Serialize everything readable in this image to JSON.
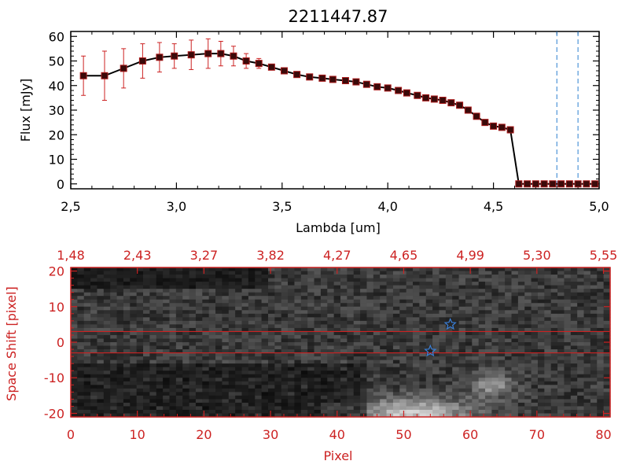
{
  "colors": {
    "axis": "#000000",
    "accent": "#cc2222",
    "marker": "#3a0a0a",
    "errorbar": "#cc2222",
    "star": "#3a7fd8",
    "vline": "#2a7fd0"
  },
  "chart_data": [
    {
      "type": "line",
      "title": "2211447.87",
      "xlabel": "Lambda [um]",
      "ylabel": "Flux [mJy]",
      "xlim": [
        2.5,
        5.0
      ],
      "ylim": [
        -2,
        62
      ],
      "xticks": [
        "2.5",
        "3.0",
        "3.5",
        "4.0",
        "4.5",
        "5.0"
      ],
      "yticks": [
        "0",
        "10",
        "20",
        "30",
        "40",
        "50",
        "60"
      ],
      "grid": false,
      "series": [
        {
          "x": [
            2.56,
            2.66,
            2.75,
            2.84,
            2.92,
            2.99,
            3.07,
            3.15,
            3.21,
            3.27,
            3.33,
            3.39,
            3.45,
            3.51,
            3.57,
            3.63,
            3.69,
            3.74,
            3.8,
            3.85,
            3.9,
            3.95,
            4.0,
            4.05,
            4.09,
            4.14,
            4.18,
            4.22,
            4.26,
            4.3,
            4.34,
            4.38,
            4.42,
            4.46,
            4.5,
            4.54,
            4.58,
            4.62,
            4.66,
            4.7,
            4.74,
            4.78,
            4.82,
            4.86,
            4.9,
            4.94,
            4.98
          ],
          "y": [
            44,
            44,
            47,
            50,
            51.5,
            52,
            52.5,
            53,
            53,
            52,
            50,
            49,
            47.5,
            46,
            44.5,
            43.5,
            43,
            42.5,
            42,
            41.5,
            40.5,
            39.5,
            39,
            38,
            37,
            36,
            35,
            34.5,
            34,
            33,
            32,
            30,
            27.5,
            25,
            23.5,
            23,
            22,
            0,
            0,
            0,
            0,
            0,
            0,
            0,
            0,
            0,
            0
          ],
          "yerr": [
            8,
            10,
            8,
            7,
            6,
            5,
            6,
            6,
            5,
            4,
            3,
            2,
            0,
            0,
            0,
            0,
            0,
            0,
            0,
            0,
            0,
            0,
            0,
            0,
            0,
            0,
            0,
            0,
            0,
            0,
            0,
            0,
            0,
            0,
            0,
            0,
            0,
            0,
            0,
            0,
            0,
            0,
            0,
            0,
            0,
            0,
            0
          ]
        }
      ],
      "vlines": [
        4.8,
        4.9
      ]
    },
    {
      "type": "heatmap",
      "xlabel": "Pixel",
      "ylabel": "Space Shift [pixel]",
      "xlim": [
        0,
        81
      ],
      "ylim": [
        -21,
        21
      ],
      "xticks": [
        "0",
        "10",
        "20",
        "30",
        "40",
        "50",
        "60",
        "70",
        "80"
      ],
      "yticks": [
        "-20",
        "-10",
        "0",
        "10",
        "20"
      ],
      "top_ticks": [
        "1.48",
        "2.43",
        "3.27",
        "3.82",
        "4.27",
        "4.65",
        "4.99",
        "5.30",
        "5.55"
      ],
      "hlines": [
        3,
        -3
      ],
      "stars": [
        {
          "x": 57,
          "y": 5
        },
        {
          "x": 54,
          "y": -2.5
        }
      ]
    }
  ]
}
